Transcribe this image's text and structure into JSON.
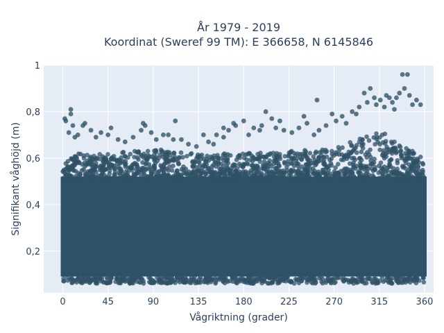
{
  "chart_data": {
    "type": "scatter",
    "title": "År 1979 - 2019",
    "subtitle": "Koordinat (Sweref 99 TM): E 366658, N 6145846",
    "xlabel": "Vågriktning (grader)",
    "ylabel": "Signifikant våghöjd (m)",
    "xlim": [
      -19,
      369
    ],
    "ylim": [
      0.02,
      1.0
    ],
    "x_ticks": [
      0,
      45,
      90,
      135,
      180,
      225,
      270,
      315,
      360
    ],
    "x_tick_labels": [
      "0",
      "45",
      "90",
      "135",
      "180",
      "225",
      "270",
      "315",
      "360"
    ],
    "y_ticks": [
      0.2,
      0.4,
      0.6,
      0.8,
      1
    ],
    "y_tick_labels": [
      "0,2",
      "0,4",
      "0,6",
      "0,8",
      "1"
    ],
    "grid": true,
    "marker_color": "#2f5167",
    "background_color": "#e5ecf6",
    "dense_band": {
      "x_range": [
        0,
        360
      ],
      "y_range": [
        0.09,
        0.52
      ]
    },
    "upper_envelope": {
      "x": [
        0,
        45,
        90,
        135,
        180,
        225,
        270,
        315,
        360
      ],
      "y": [
        0.62,
        0.62,
        0.64,
        0.62,
        0.62,
        0.63,
        0.64,
        0.72,
        0.6
      ]
    },
    "points": [
      {
        "x": 2,
        "y": 0.77
      },
      {
        "x": 3,
        "y": 0.76
      },
      {
        "x": 8,
        "y": 0.79
      },
      {
        "x": 8,
        "y": 0.81
      },
      {
        "x": 6,
        "y": 0.71
      },
      {
        "x": 10,
        "y": 0.74
      },
      {
        "x": 12,
        "y": 0.69
      },
      {
        "x": 15,
        "y": 0.7
      },
      {
        "x": 20,
        "y": 0.74
      },
      {
        "x": 22,
        "y": 0.75
      },
      {
        "x": 28,
        "y": 0.72
      },
      {
        "x": 33,
        "y": 0.69
      },
      {
        "x": 38,
        "y": 0.71
      },
      {
        "x": 45,
        "y": 0.7
      },
      {
        "x": 48,
        "y": 0.73
      },
      {
        "x": 55,
        "y": 0.68
      },
      {
        "x": 62,
        "y": 0.67
      },
      {
        "x": 70,
        "y": 0.69
      },
      {
        "x": 78,
        "y": 0.72
      },
      {
        "x": 80,
        "y": 0.75
      },
      {
        "x": 82,
        "y": 0.74
      },
      {
        "x": 88,
        "y": 0.71
      },
      {
        "x": 93,
        "y": 0.68
      },
      {
        "x": 100,
        "y": 0.7
      },
      {
        "x": 105,
        "y": 0.7
      },
      {
        "x": 110,
        "y": 0.68
      },
      {
        "x": 112,
        "y": 0.76
      },
      {
        "x": 118,
        "y": 0.68
      },
      {
        "x": 125,
        "y": 0.66
      },
      {
        "x": 133,
        "y": 0.65
      },
      {
        "x": 145,
        "y": 0.67
      },
      {
        "x": 150,
        "y": 0.66
      },
      {
        "x": 153,
        "y": 0.7
      },
      {
        "x": 160,
        "y": 0.69
      },
      {
        "x": 165,
        "y": 0.72
      },
      {
        "x": 170,
        "y": 0.75
      },
      {
        "x": 172,
        "y": 0.74
      },
      {
        "x": 180,
        "y": 0.76
      },
      {
        "x": 185,
        "y": 0.7
      },
      {
        "x": 190,
        "y": 0.73
      },
      {
        "x": 196,
        "y": 0.72
      },
      {
        "x": 202,
        "y": 0.8
      },
      {
        "x": 208,
        "y": 0.77
      },
      {
        "x": 212,
        "y": 0.73
      },
      {
        "x": 216,
        "y": 0.76
      },
      {
        "x": 220,
        "y": 0.72
      },
      {
        "x": 228,
        "y": 0.71
      },
      {
        "x": 235,
        "y": 0.73
      },
      {
        "x": 240,
        "y": 0.78
      },
      {
        "x": 243,
        "y": 0.75
      },
      {
        "x": 250,
        "y": 0.7
      },
      {
        "x": 255,
        "y": 0.72
      },
      {
        "x": 262,
        "y": 0.74
      },
      {
        "x": 268,
        "y": 0.79
      },
      {
        "x": 272,
        "y": 0.76
      },
      {
        "x": 278,
        "y": 0.78
      },
      {
        "x": 282,
        "y": 0.75
      },
      {
        "x": 288,
        "y": 0.8
      },
      {
        "x": 292,
        "y": 0.79
      },
      {
        "x": 295,
        "y": 0.82
      },
      {
        "x": 300,
        "y": 0.88
      },
      {
        "x": 303,
        "y": 0.84
      },
      {
        "x": 306,
        "y": 0.9
      },
      {
        "x": 310,
        "y": 0.86
      },
      {
        "x": 312,
        "y": 0.83
      },
      {
        "x": 316,
        "y": 0.85
      },
      {
        "x": 320,
        "y": 0.82
      },
      {
        "x": 322,
        "y": 0.87
      },
      {
        "x": 325,
        "y": 0.86
      },
      {
        "x": 328,
        "y": 0.84
      },
      {
        "x": 330,
        "y": 0.81
      },
      {
        "x": 332,
        "y": 0.86
      },
      {
        "x": 335,
        "y": 0.88
      },
      {
        "x": 338,
        "y": 0.96
      },
      {
        "x": 343,
        "y": 0.96
      },
      {
        "x": 340,
        "y": 0.9
      },
      {
        "x": 345,
        "y": 0.87
      },
      {
        "x": 348,
        "y": 0.83
      },
      {
        "x": 352,
        "y": 0.85
      },
      {
        "x": 356,
        "y": 0.83
      },
      {
        "x": 253,
        "y": 0.85
      },
      {
        "x": 198,
        "y": 0.74
      },
      {
        "x": 140,
        "y": 0.7
      },
      {
        "x": 160,
        "y": 0.73
      }
    ]
  }
}
